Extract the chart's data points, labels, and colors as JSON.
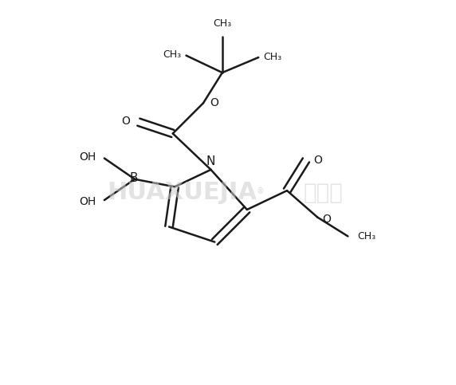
{
  "background_color": "#ffffff",
  "line_color": "#1a1a1a",
  "line_width": 1.8,
  "font_size_label": 10,
  "font_size_small": 9,
  "figsize": [
    5.72,
    4.83
  ],
  "dpi": 100,
  "xlim": [
    0,
    10
  ],
  "ylim": [
    0,
    10
  ]
}
